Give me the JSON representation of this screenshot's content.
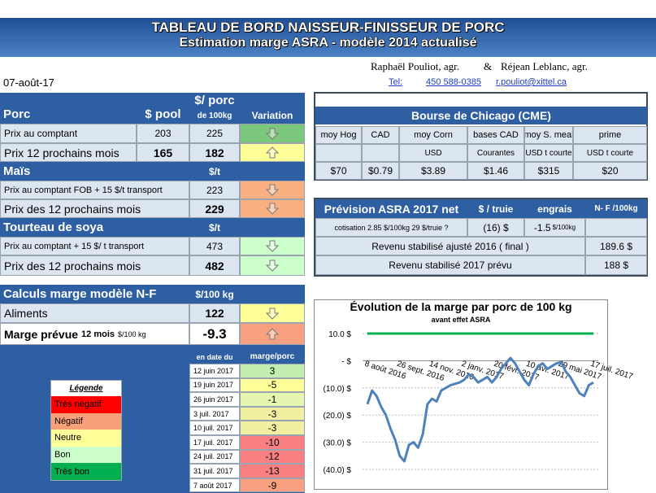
{
  "header": {
    "title": "TABLEAU DE BORD NAISSEUR-FINISSEUR DE PORC",
    "subtitle": "Estimation marge ASRA - modèle 2014 actualisé",
    "author1": "Raphaël Pouliot, agr.",
    "and": "&",
    "author2": "Réjean Leblanc, agr.",
    "tel_label": "Tel:",
    "tel": "450 588-0385",
    "email": "r.pouliot@xittel.ca",
    "date": "07-août-17"
  },
  "prices": {
    "porc": {
      "title": "Porc",
      "col1": "$ pool",
      "col2": "$/ porc",
      "col2_sub": "de 100kg",
      "col3": "Variation",
      "rows": [
        [
          "Prix au comptant",
          "203",
          "225"
        ],
        [
          "Prix 12 prochains mois",
          "165",
          "182"
        ]
      ]
    },
    "mais": {
      "title": "Maïs",
      "unit": "$/t",
      "rows": [
        [
          "Prix au comptant  FOB + 15 $/t transport",
          "223"
        ],
        [
          "Prix des 12 prochains mois",
          "229"
        ]
      ]
    },
    "soya": {
      "title": "Tourteau de soya",
      "unit": "$/t",
      "rows": [
        [
          "Prix au comptant  + 15 $/ t  transport",
          "473"
        ],
        [
          "Prix des 12 prochains mois",
          "482"
        ]
      ]
    }
  },
  "chicago": {
    "title": "Bourse de Chicago (CME)",
    "headers": [
      "moy Hog",
      "CAD",
      "moy Corn",
      "bases CAD",
      "moy S. meal",
      "prime"
    ],
    "units": [
      "USD",
      "Courantes",
      "USD t courte",
      "USD t courte"
    ],
    "values": [
      "$70",
      "$0.79",
      "$3.89",
      "$1.46",
      "$315",
      "$20"
    ]
  },
  "prevision": {
    "title": "Prévision ASRA 2017 net",
    "col1": "$ / truie",
    "col2": "engrais",
    "col3": "N- F /100kg",
    "cotisation": "cotisation 2.85 $/100kg  29 $/truie ?",
    "per_sow": "(16) $",
    "engrais": "-1.5",
    "engrais_unit": "$/100kg",
    "rows": [
      [
        "Revenu stabilisé ajusté 2016 ( final )",
        "189.6 $"
      ],
      [
        "Revenu stabilisé 2017 prévu",
        "188 $"
      ]
    ]
  },
  "calc": {
    "title": "Calculs marge  modèle N-F",
    "unit": "$/100 kg",
    "aliments": "Aliments",
    "aliments_value": "122",
    "marge": "Marge prévue",
    "marge_sub": "12 mois",
    "marge_unit": "$/100 kg",
    "marge_value": "-9.3"
  },
  "history": {
    "col1": "en date du",
    "col2": "marge/porc",
    "rows": [
      [
        "12 juin 2017",
        "3"
      ],
      [
        "19 juin 2017",
        "-5"
      ],
      [
        "26 juin 2017",
        "-1"
      ],
      [
        "3 juil. 2017",
        "-3"
      ],
      [
        "10 juil. 2017",
        "-3"
      ],
      [
        "17 juil. 2017",
        "-10"
      ],
      [
        "24 juil. 2017",
        "-12"
      ],
      [
        "31 juil. 2017",
        "-13"
      ],
      [
        "7 août 2017",
        "-9"
      ]
    ]
  },
  "legend": {
    "title": "Légende",
    "items": [
      "Très négatif",
      "Négatif",
      "Neutre",
      "Bon",
      "Très bon"
    ]
  },
  "chart_data": {
    "type": "line",
    "title": "Évolution de la marge par porc de 100 kg",
    "subtitle": "avant effet ASRA",
    "categories": [
      "8 août 2016",
      null,
      null,
      null,
      null,
      null,
      null,
      "26 sept. 2016",
      null,
      null,
      null,
      null,
      null,
      null,
      "14 nov. 2016",
      null,
      null,
      null,
      null,
      null,
      null,
      "2 janv. 2017",
      null,
      null,
      null,
      null,
      null,
      null,
      "20 févr. 2017",
      null,
      null,
      null,
      null,
      null,
      null,
      "10 avr. 2017",
      null,
      null,
      null,
      null,
      null,
      null,
      "29 mai 2017",
      null,
      null,
      null,
      null,
      null,
      null,
      "17 juil. 2017"
    ],
    "series": [
      {
        "color": "#4f81bd",
        "values": [
          -16,
          -11,
          -13,
          -17,
          -20,
          -25,
          -29,
          -35,
          -37,
          -31,
          -30,
          -32,
          -27,
          -16,
          -14,
          -15,
          -11,
          -10,
          -9,
          -8.5,
          -8,
          -7,
          -5,
          -6,
          -8,
          -7,
          -6,
          -8,
          -6,
          -3,
          -1,
          1,
          -1,
          -4,
          -7,
          -9,
          -5,
          -2,
          -1,
          -3,
          -2,
          -1,
          -0.5,
          -4,
          -6,
          -9,
          -12,
          -13,
          -9,
          -8
        ]
      },
      {
        "color": "#00b050",
        "values": [
          10,
          10,
          10,
          10,
          10,
          10,
          10,
          10,
          10,
          10,
          10,
          10,
          10,
          10,
          10,
          10,
          10,
          10,
          10,
          10,
          10,
          10,
          10,
          10,
          10,
          10,
          10,
          10,
          10,
          10,
          10,
          10,
          10,
          10,
          10,
          10,
          10,
          10,
          10,
          10,
          10,
          10,
          10,
          10,
          10,
          10,
          10,
          10,
          10,
          10
        ]
      }
    ],
    "ylim": [
      -40,
      10
    ],
    "yticks": [
      {
        "value": 10,
        "label": "10.0 $"
      },
      {
        "value": 0,
        "label": "-   $"
      },
      {
        "value": -10,
        "label": "(10.0) $"
      },
      {
        "value": -20,
        "label": "(20.0) $"
      },
      {
        "value": -30,
        "label": "(30.0) $"
      },
      {
        "value": -40,
        "label": "(40.0) $"
      }
    ],
    "grid": true
  }
}
